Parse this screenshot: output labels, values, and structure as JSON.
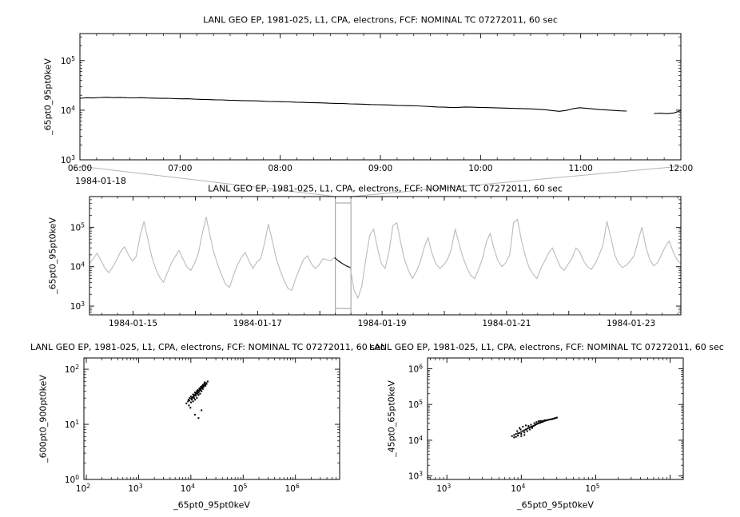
{
  "chart_data": [
    {
      "type": "line",
      "panel": "zoom-timeseries",
      "title": "LANL GEO EP, 1981-025, L1, CPA, electrons, FCF: NOMINAL TC 07272011, 60 sec",
      "ylabel": "_65pt0_95pt0keV",
      "x_date": "1984-01-18",
      "x_tick_labels": [
        "06:00",
        "07:00",
        "08:00",
        "09:00",
        "10:00",
        "11:00",
        "12:00"
      ],
      "x_hours": [
        6,
        12
      ],
      "ylog_exponents": [
        3,
        4,
        5
      ],
      "ylim": [
        1000,
        350000
      ],
      "grid": false,
      "line_color": "#000000",
      "values": [
        17400,
        17800,
        17600,
        18000,
        18200,
        17900,
        18100,
        17800,
        17700,
        17900,
        17600,
        17500,
        17300,
        17400,
        17100,
        16900,
        17000,
        16700,
        16500,
        16400,
        16200,
        16100,
        15900,
        15800,
        15600,
        15500,
        15400,
        15200,
        15000,
        14900,
        14800,
        14700,
        14500,
        14400,
        14200,
        14100,
        14000,
        13800,
        13700,
        13600,
        13400,
        13300,
        13200,
        13000,
        12900,
        12800,
        12700,
        12500,
        12400,
        12300,
        12200,
        12000,
        11800,
        11600,
        11500,
        11300,
        11400,
        11600,
        11500,
        11400,
        11300,
        11200,
        11100,
        11000,
        10900,
        10800,
        10700,
        10600,
        10400,
        10200,
        9800,
        9500,
        9900,
        10700,
        11200,
        10900,
        10600,
        10300,
        10100,
        9900,
        9700,
        9600,
        null,
        null,
        null,
        8600,
        8700,
        8500,
        8800,
        9800
      ]
    },
    {
      "type": "line",
      "panel": "context-overview",
      "title": "LANL GEO EP, 1981-025, L1, CPA, electrons, FCF: NOMINAL TC 07272011, 60 sec",
      "ylabel": "_65pt0_95pt0keV",
      "x_tick_labels": [
        "1984-01-15",
        "1984-01-17",
        "1984-01-19",
        "1984-01-21",
        "1984-01-23"
      ],
      "x_tick_days": [
        15,
        17,
        19,
        21,
        23
      ],
      "x_days": [
        14.3,
        23.8
      ],
      "ylog_exponents": [
        3,
        4,
        5
      ],
      "ylim": [
        600,
        600000
      ],
      "grid": false,
      "line_color": "#bbbbbb",
      "highlight": {
        "days": [
          18.25,
          18.5
        ],
        "color": "#000000",
        "box_color": "#9a9a9a"
      },
      "values": [
        12000,
        16000,
        22000,
        14000,
        9000,
        7000,
        10000,
        15000,
        24000,
        32000,
        20000,
        14000,
        18000,
        60000,
        140000,
        50000,
        18000,
        9000,
        5500,
        4000,
        7000,
        12000,
        18000,
        26000,
        16000,
        10000,
        8000,
        12000,
        22000,
        70000,
        180000,
        60000,
        22000,
        11000,
        6000,
        3500,
        3000,
        6000,
        11000,
        17000,
        23000,
        14000,
        9000,
        13000,
        16000,
        40000,
        120000,
        45000,
        16000,
        8000,
        4500,
        2800,
        2500,
        5000,
        9000,
        15000,
        19000,
        12000,
        9000,
        11000,
        16000,
        15000,
        14000,
        17000,
        14000,
        12000,
        10500,
        9500,
        2500,
        1600,
        3200,
        15000,
        60000,
        90000,
        30000,
        12000,
        9000,
        25000,
        110000,
        130000,
        40000,
        15000,
        8000,
        5000,
        7500,
        13000,
        30000,
        55000,
        22000,
        12000,
        9000,
        11000,
        15000,
        28000,
        90000,
        38000,
        17000,
        9500,
        6000,
        5000,
        8500,
        16000,
        42000,
        70000,
        28000,
        14000,
        10000,
        12500,
        20000,
        130000,
        160000,
        48000,
        19000,
        9500,
        6500,
        5000,
        9000,
        14000,
        22000,
        30000,
        17000,
        10000,
        8000,
        11500,
        16000,
        30000,
        24000,
        14000,
        10000,
        8500,
        12000,
        20000,
        36000,
        140000,
        55000,
        20000,
        12000,
        9500,
        11000,
        14000,
        19000,
        45000,
        100000,
        32000,
        15000,
        10500,
        12500,
        20000,
        32000,
        45000,
        24000,
        15000,
        12000
      ]
    },
    {
      "type": "scatter",
      "panel": "scatter-left",
      "title": "LANL GEO EP, 1981-025, L1, CPA, electrons, FCF: NOMINAL TC 07272011, 60 sec",
      "xlabel": "_65pt0_95pt0keV",
      "ylabel": "_600pt0_900pt0keV",
      "xlim": [
        90,
        7000000
      ],
      "ylim": [
        1,
        160
      ],
      "xlog_exponents": [
        2,
        3,
        4,
        5,
        6
      ],
      "ylog_exponents": [
        0,
        1,
        2
      ],
      "grid": false,
      "point_color": "#000000",
      "points": [
        [
          8200,
          24
        ],
        [
          9000,
          28
        ],
        [
          9500,
          30
        ],
        [
          10000,
          32
        ],
        [
          10500,
          30
        ],
        [
          11000,
          35
        ],
        [
          11500,
          33
        ],
        [
          12000,
          38
        ],
        [
          12500,
          36
        ],
        [
          13000,
          40
        ],
        [
          13500,
          42
        ],
        [
          14000,
          38
        ],
        [
          14500,
          45
        ],
        [
          15000,
          44
        ],
        [
          15500,
          48
        ],
        [
          16000,
          46
        ],
        [
          16500,
          50
        ],
        [
          17000,
          52
        ],
        [
          17500,
          48
        ],
        [
          18000,
          55
        ],
        [
          13000,
          30
        ],
        [
          12000,
          28
        ],
        [
          11000,
          26
        ],
        [
          10000,
          25
        ],
        [
          9200,
          22
        ],
        [
          16000,
          40
        ],
        [
          15000,
          36
        ],
        [
          14000,
          34
        ],
        [
          17000,
          44
        ],
        [
          19000,
          50
        ],
        [
          18500,
          58
        ],
        [
          20000,
          54
        ],
        [
          21000,
          60
        ],
        [
          10500,
          28
        ],
        [
          11500,
          30
        ],
        [
          12500,
          33
        ],
        [
          13500,
          36
        ],
        [
          14500,
          40
        ],
        [
          15500,
          42
        ],
        [
          16500,
          47
        ],
        [
          12000,
          15
        ],
        [
          14000,
          13
        ],
        [
          16000,
          18
        ],
        [
          9800,
          20
        ],
        [
          10800,
          31
        ],
        [
          11800,
          34
        ],
        [
          12800,
          37
        ],
        [
          13800,
          41
        ],
        [
          14800,
          43
        ],
        [
          15800,
          45
        ],
        [
          16800,
          49
        ],
        [
          17800,
          51
        ],
        [
          18800,
          53
        ],
        [
          19800,
          56
        ],
        [
          8800,
          26
        ],
        [
          9400,
          27
        ],
        [
          10200,
          29
        ],
        [
          11200,
          32
        ],
        [
          12200,
          35
        ],
        [
          13200,
          39
        ]
      ]
    },
    {
      "type": "scatter",
      "panel": "scatter-right",
      "title": "LANL GEO EP, 1981-025, L1, CPA, electrons, FCF: NOMINAL TC 07272011, 60 sec",
      "xlabel": "_65pt0_95pt0keV",
      "ylabel": "_45pt0_65pt0keV",
      "xlim": [
        550,
        1500000
      ],
      "ylim": [
        800,
        2000000
      ],
      "xlog_exponents": [
        3,
        4,
        5
      ],
      "ylog_exponents": [
        3,
        4,
        5,
        6
      ],
      "grid": false,
      "point_color": "#000000",
      "points": [
        [
          7500,
          13000
        ],
        [
          8000,
          14000
        ],
        [
          8500,
          15000
        ],
        [
          9000,
          15500
        ],
        [
          9500,
          16000
        ],
        [
          10000,
          17000
        ],
        [
          10500,
          18000
        ],
        [
          11000,
          19000
        ],
        [
          11500,
          20000
        ],
        [
          12000,
          21000
        ],
        [
          12500,
          22000
        ],
        [
          13000,
          23000
        ],
        [
          13500,
          23500
        ],
        [
          14000,
          24000
        ],
        [
          14500,
          25000
        ],
        [
          15000,
          26000
        ],
        [
          15500,
          27000
        ],
        [
          16000,
          28000
        ],
        [
          16500,
          29000
        ],
        [
          17000,
          30000
        ],
        [
          17500,
          30500
        ],
        [
          18000,
          31000
        ],
        [
          18500,
          32000
        ],
        [
          19000,
          32500
        ],
        [
          19500,
          33000
        ],
        [
          20000,
          34000
        ],
        [
          21000,
          35000
        ],
        [
          22000,
          36000
        ],
        [
          23000,
          37000
        ],
        [
          24000,
          38000
        ],
        [
          25000,
          38500
        ],
        [
          26000,
          39000
        ],
        [
          27000,
          40000
        ],
        [
          28000,
          41000
        ],
        [
          29000,
          42000
        ],
        [
          30000,
          43000
        ],
        [
          8000,
          12000
        ],
        [
          9000,
          13500
        ],
        [
          10000,
          15000
        ],
        [
          11000,
          16500
        ],
        [
          9500,
          22000
        ],
        [
          10500,
          24000
        ],
        [
          8800,
          18000
        ],
        [
          9800,
          20000
        ],
        [
          11500,
          26000
        ],
        [
          10000,
          13000
        ],
        [
          12000,
          18000
        ],
        [
          13000,
          20000
        ],
        [
          11000,
          14000
        ],
        [
          14000,
          22000
        ],
        [
          16000,
          32000
        ],
        [
          17000,
          34000
        ],
        [
          18000,
          34500
        ],
        [
          19000,
          35000
        ],
        [
          20500,
          36000
        ],
        [
          21500,
          36500
        ],
        [
          15000,
          30000
        ],
        [
          13500,
          27000
        ],
        [
          12500,
          25000
        ],
        [
          8500,
          12500
        ]
      ]
    }
  ]
}
